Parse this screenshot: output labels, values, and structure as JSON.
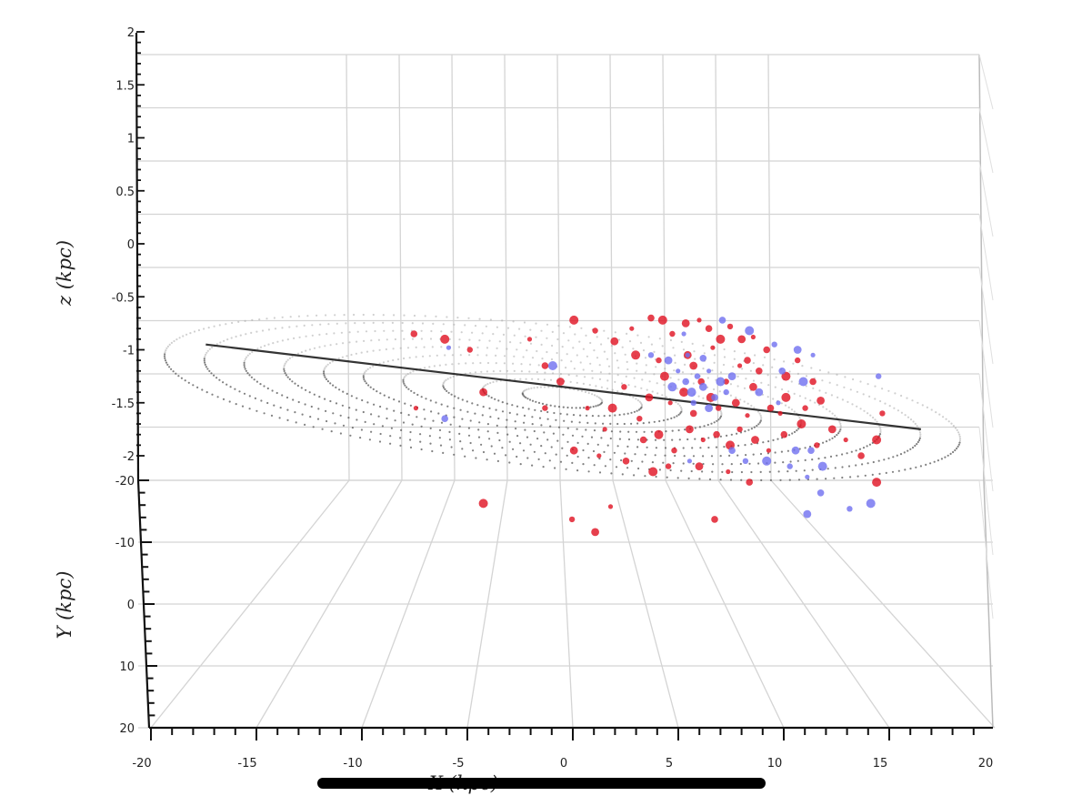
{
  "chart_data": {
    "type": "scatter",
    "title": "",
    "xlabel": "X (kpc)",
    "ylabel": "Y (kpc)",
    "zlabel": "z (kpc)",
    "xlim": [
      -20,
      20
    ],
    "ylim": [
      -20,
      20
    ],
    "zlim": [
      -2,
      2
    ],
    "x_ticks": [
      "-20",
      "-15",
      "-10",
      "-5",
      "0",
      "5",
      "10",
      "15",
      "20"
    ],
    "y_ticks": [
      "-20",
      "-10",
      "0",
      "10",
      "20"
    ],
    "z_ticks": [
      "2",
      "1.5",
      "1",
      "0.5",
      "0",
      "-0.5",
      "-1",
      "-1.5",
      "-2"
    ],
    "grid": true,
    "colors": {
      "red_series": "#e01020",
      "blue_series": "#6f6ff0",
      "warp_line": "#111111",
      "disk_dots": "#888888"
    },
    "series": [
      {
        "color": "red",
        "points_xz": [
          [
            -8,
            -1.55
          ],
          [
            -8.1,
            -0.85
          ],
          [
            -6.5,
            -0.9
          ],
          [
            -5.2,
            -1.0
          ],
          [
            -4.5,
            -1.4
          ],
          [
            -2.1,
            -0.9
          ],
          [
            -1.3,
            -1.15
          ],
          [
            0.2,
            -0.72
          ],
          [
            1.3,
            -0.82
          ],
          [
            2.3,
            -0.92
          ],
          [
            3.2,
            -0.8
          ],
          [
            4.2,
            -0.7
          ],
          [
            4.8,
            -0.72
          ],
          [
            5.3,
            -0.85
          ],
          [
            6.0,
            -0.75
          ],
          [
            6.7,
            -0.72
          ],
          [
            7.2,
            -0.8
          ],
          [
            7.8,
            -0.9
          ],
          [
            8.3,
            -0.78
          ],
          [
            8.9,
            -0.9
          ],
          [
            9.5,
            -0.88
          ],
          [
            10.2,
            -1.0
          ],
          [
            3.4,
            -1.05
          ],
          [
            4.6,
            -1.1
          ],
          [
            6.4,
            -1.15
          ],
          [
            8.8,
            -1.15
          ],
          [
            9.8,
            -1.2
          ],
          [
            11.2,
            -1.25
          ],
          [
            2.8,
            -1.35
          ],
          [
            4.1,
            -1.45
          ],
          [
            5.2,
            -1.5
          ],
          [
            6.4,
            -1.6
          ],
          [
            7.3,
            -1.45
          ],
          [
            7.7,
            -1.55
          ],
          [
            8.6,
            -1.5
          ],
          [
            9.2,
            -1.62
          ],
          [
            10.4,
            -1.55
          ],
          [
            11.2,
            -1.45
          ],
          [
            12.2,
            -1.55
          ],
          [
            13.0,
            -1.48
          ],
          [
            1.8,
            -1.75
          ],
          [
            3.8,
            -1.85
          ],
          [
            4.6,
            -1.8
          ],
          [
            5.4,
            -1.95
          ],
          [
            6.2,
            -1.75
          ],
          [
            6.9,
            -1.85
          ],
          [
            7.6,
            -1.8
          ],
          [
            8.3,
            -1.9
          ],
          [
            8.8,
            -1.75
          ],
          [
            9.6,
            -1.85
          ],
          [
            10.3,
            -1.95
          ],
          [
            11.1,
            -1.8
          ],
          [
            12.0,
            -1.7
          ],
          [
            12.8,
            -1.9
          ],
          [
            13.6,
            -1.75
          ],
          [
            14.3,
            -1.85
          ],
          [
            15.1,
            -2.0
          ],
          [
            15.9,
            -1.85
          ],
          [
            16.2,
            -1.6
          ],
          [
            0.2,
            -1.95
          ],
          [
            1.5,
            -2.0
          ],
          [
            2.9,
            -2.05
          ],
          [
            4.3,
            -2.15
          ],
          [
            5.1,
            -2.1
          ],
          [
            6.7,
            -2.1
          ],
          [
            8.2,
            -2.15
          ],
          [
            9.3,
            -2.25
          ],
          [
            -4.5,
            -2.45
          ],
          [
            0.1,
            -2.6
          ],
          [
            1.3,
            -2.72
          ],
          [
            2.1,
            -2.48
          ],
          [
            7.5,
            -2.6
          ],
          [
            15.9,
            -2.25
          ],
          [
            -1.3,
            -1.55
          ],
          [
            -0.5,
            -1.3
          ],
          [
            0.9,
            -1.55
          ],
          [
            6.8,
            -1.3
          ],
          [
            5.9,
            -1.4
          ],
          [
            8.1,
            -1.3
          ],
          [
            9.5,
            -1.35
          ],
          [
            10.9,
            -1.6
          ],
          [
            12.6,
            -1.3
          ],
          [
            2.2,
            -1.55
          ],
          [
            3.6,
            -1.65
          ],
          [
            6.1,
            -1.05
          ],
          [
            7.4,
            -0.98
          ],
          [
            9.2,
            -1.1
          ],
          [
            4.9,
            -1.25
          ],
          [
            11.8,
            -1.1
          ]
        ]
      },
      {
        "color": "blue",
        "points_xz": [
          [
            -6.3,
            -0.98
          ],
          [
            -6.5,
            -1.65
          ],
          [
            -0.9,
            -1.15
          ],
          [
            4.2,
            -1.05
          ],
          [
            5.1,
            -1.1
          ],
          [
            5.6,
            -1.2
          ],
          [
            6.0,
            -1.3
          ],
          [
            6.3,
            -1.4
          ],
          [
            6.6,
            -1.25
          ],
          [
            6.9,
            -1.35
          ],
          [
            7.2,
            -1.2
          ],
          [
            7.5,
            -1.45
          ],
          [
            7.8,
            -1.3
          ],
          [
            8.1,
            -1.4
          ],
          [
            8.4,
            -1.25
          ],
          [
            6.1,
            -1.05
          ],
          [
            6.9,
            -1.08
          ],
          [
            5.3,
            -1.35
          ],
          [
            6.4,
            -1.5
          ],
          [
            7.2,
            -1.55
          ],
          [
            5.9,
            -0.85
          ],
          [
            7.9,
            -0.72
          ],
          [
            9.3,
            -0.82
          ],
          [
            10.6,
            -0.95
          ],
          [
            11.8,
            -1.0
          ],
          [
            12.6,
            -1.05
          ],
          [
            11.0,
            -1.2
          ],
          [
            12.1,
            -1.3
          ],
          [
            16.0,
            -1.25
          ],
          [
            9.8,
            -1.4
          ],
          [
            10.8,
            -1.5
          ],
          [
            12.5,
            -1.95
          ],
          [
            13.1,
            -2.1
          ],
          [
            9.1,
            -2.05
          ],
          [
            11.7,
            -1.95
          ],
          [
            12.3,
            -2.2
          ],
          [
            13.0,
            -2.35
          ],
          [
            15.6,
            -2.45
          ],
          [
            14.5,
            -2.5
          ],
          [
            12.3,
            -2.55
          ],
          [
            6.2,
            -2.05
          ],
          [
            8.4,
            -1.95
          ],
          [
            10.2,
            -2.05
          ],
          [
            11.4,
            -2.1
          ]
        ]
      }
    ]
  }
}
